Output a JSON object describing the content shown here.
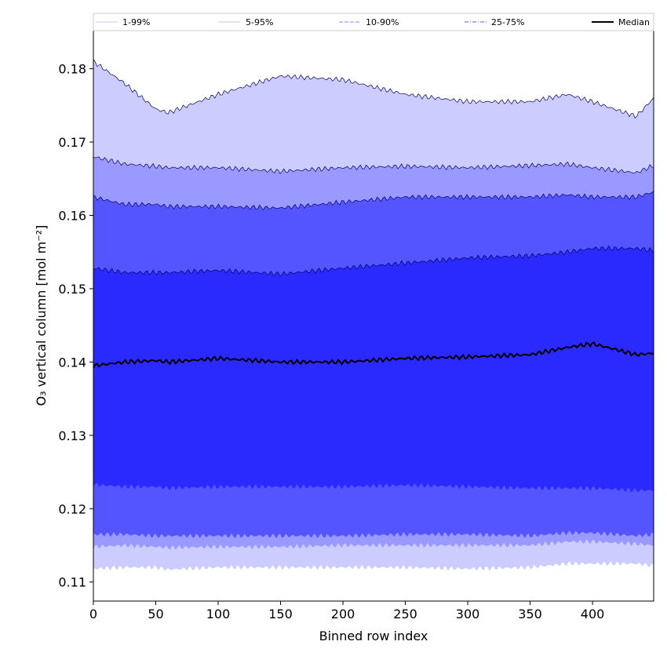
{
  "chart_data": {
    "type": "area",
    "xlabel": "Binned row index",
    "ylabel": "O₃ vertical column [mol m⁻²]",
    "xlim": [
      0,
      449
    ],
    "ylim": [
      0.1074,
      0.1852
    ],
    "xticks": [
      0,
      50,
      100,
      150,
      200,
      250,
      300,
      350,
      400
    ],
    "yticks": [
      0.11,
      0.12,
      0.13,
      0.14,
      0.15,
      0.16,
      0.17,
      0.18
    ],
    "ytick_labels": [
      "0.11",
      "0.12",
      "0.13",
      "0.14",
      "0.15",
      "0.16",
      "0.17",
      "0.18"
    ],
    "legend_position": "top (above plot, horizontal)",
    "grid": false,
    "x": [
      0,
      25,
      50,
      60,
      100,
      150,
      200,
      250,
      300,
      350,
      380,
      400,
      435,
      449
    ],
    "bands": [
      {
        "name": "1-99%",
        "color": "#ccccff",
        "upper": [
          0.181,
          0.178,
          0.1745,
          0.174,
          0.1765,
          0.179,
          0.1785,
          0.1765,
          0.1755,
          0.1755,
          0.1765,
          0.1755,
          0.1735,
          0.176
        ],
        "lower": [
          0.1118,
          0.112,
          0.112,
          0.1117,
          0.112,
          0.112,
          0.112,
          0.112,
          0.1118,
          0.112,
          0.1125,
          0.1125,
          0.1125,
          0.1122
        ]
      },
      {
        "name": "5-95%",
        "color": "#9999ff",
        "upper": [
          0.168,
          0.167,
          0.1667,
          0.1665,
          0.1665,
          0.166,
          0.1665,
          0.1667,
          0.1665,
          0.1668,
          0.167,
          0.1665,
          0.1658,
          0.1668
        ],
        "lower": [
          0.1148,
          0.115,
          0.1148,
          0.1147,
          0.1148,
          0.1148,
          0.115,
          0.115,
          0.115,
          0.115,
          0.1155,
          0.1155,
          0.1152,
          0.115
        ]
      },
      {
        "name": "10-90%",
        "color": "#5555ff",
        "upper": [
          0.1625,
          0.1615,
          0.1615,
          0.1612,
          0.1612,
          0.161,
          0.1618,
          0.1625,
          0.1625,
          0.1625,
          0.1628,
          0.1625,
          0.1625,
          0.1632
        ],
        "lower": [
          0.1165,
          0.1165,
          0.1163,
          0.1163,
          0.1163,
          0.1163,
          0.1163,
          0.1165,
          0.1165,
          0.1163,
          0.1167,
          0.1167,
          0.1163,
          0.1165
        ]
      },
      {
        "name": "25-75%",
        "color": "#2a2aff",
        "upper": [
          0.1528,
          0.1522,
          0.1522,
          0.1522,
          0.1525,
          0.152,
          0.1528,
          0.1535,
          0.1542,
          0.1545,
          0.155,
          0.1555,
          0.1555,
          0.1552
        ],
        "lower": [
          0.1233,
          0.123,
          0.123,
          0.1228,
          0.123,
          0.123,
          0.123,
          0.1232,
          0.123,
          0.1228,
          0.1228,
          0.1228,
          0.1225,
          0.1225
        ]
      }
    ],
    "median": {
      "name": "Median",
      "color": "#000000",
      "values": [
        0.1395,
        0.14,
        0.1402,
        0.14,
        0.1405,
        0.14,
        0.14,
        0.1405,
        0.1407,
        0.141,
        0.142,
        0.1425,
        0.141,
        0.1412
      ]
    },
    "legend": [
      {
        "label": "1-99%",
        "color": "#ccccff",
        "style": "thin solid"
      },
      {
        "label": "5-95%",
        "color": "#9999ff",
        "style": "thin dotted"
      },
      {
        "label": "10-90%",
        "color": "#8888ff",
        "style": "dashed"
      },
      {
        "label": "25-75%",
        "color": "#5555ff",
        "style": "dash-dot"
      },
      {
        "label": "Median",
        "color": "#000000",
        "style": "thick solid"
      }
    ]
  }
}
